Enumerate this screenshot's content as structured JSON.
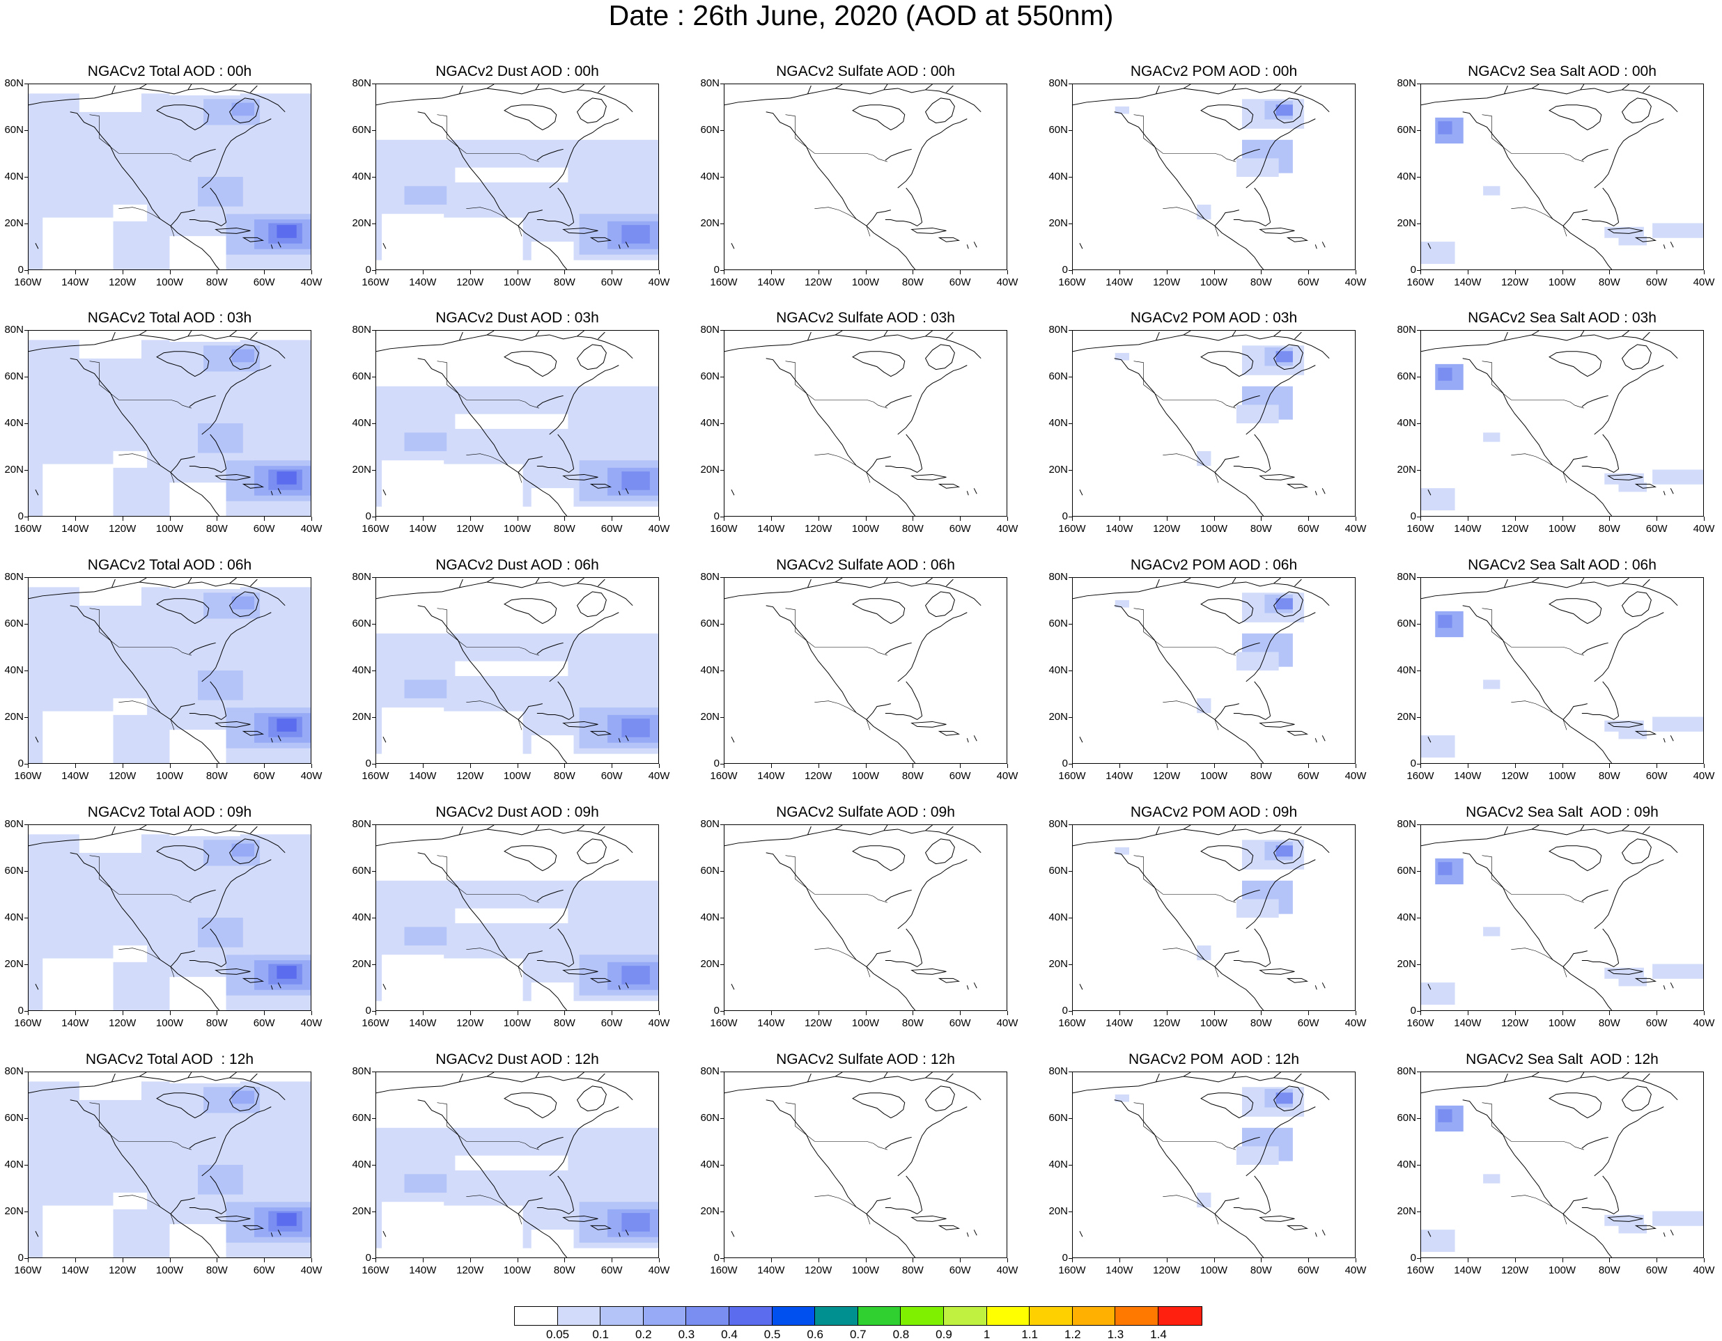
{
  "title": "Date : 26th June, 2020 (AOD at 550nm)",
  "axes": {
    "lat_labels": [
      "80N",
      "60N",
      "40N",
      "20N",
      "0"
    ],
    "lon_labels": [
      "160W",
      "140W",
      "120W",
      "100W",
      "80W",
      "60W",
      "40W"
    ]
  },
  "panels": [
    {
      "title": "NGACv2 Total AOD : 00h",
      "species": "total",
      "hour": "00h"
    },
    {
      "title": "NGACv2 Dust AOD : 00h",
      "species": "dust",
      "hour": "00h"
    },
    {
      "title": "NGACv2 Sulfate AOD : 00h",
      "species": "sulfate",
      "hour": "00h"
    },
    {
      "title": "NGACv2 POM AOD : 00h",
      "species": "pom",
      "hour": "00h"
    },
    {
      "title": "NGACv2 Sea Salt AOD : 00h",
      "species": "seasalt",
      "hour": "00h"
    },
    {
      "title": "NGACv2 Total AOD : 03h",
      "species": "total",
      "hour": "03h"
    },
    {
      "title": "NGACv2 Dust AOD : 03h",
      "species": "dust",
      "hour": "03h"
    },
    {
      "title": "NGACv2 Sulfate AOD : 03h",
      "species": "sulfate",
      "hour": "03h"
    },
    {
      "title": "NGACv2 POM AOD : 03h",
      "species": "pom",
      "hour": "03h"
    },
    {
      "title": "NGACv2 Sea Salt AOD : 03h",
      "species": "seasalt",
      "hour": "03h"
    },
    {
      "title": "NGACv2 Total AOD : 06h",
      "species": "total",
      "hour": "06h"
    },
    {
      "title": "NGACv2 Dust AOD : 06h",
      "species": "dust",
      "hour": "06h"
    },
    {
      "title": "NGACv2 Sulfate AOD : 06h",
      "species": "sulfate",
      "hour": "06h"
    },
    {
      "title": "NGACv2 POM AOD : 06h",
      "species": "pom",
      "hour": "06h"
    },
    {
      "title": "NGACv2 Sea Salt AOD : 06h",
      "species": "seasalt",
      "hour": "06h"
    },
    {
      "title": "NGACv2 Total AOD : 09h",
      "species": "total",
      "hour": "09h"
    },
    {
      "title": "NGACv2 Dust AOD : 09h",
      "species": "dust",
      "hour": "09h"
    },
    {
      "title": "NGACv2 Sulfate AOD : 09h",
      "species": "sulfate",
      "hour": "09h"
    },
    {
      "title": "NGACv2 POM AOD : 09h",
      "species": "pom",
      "hour": "09h"
    },
    {
      "title": "NGACv2 Sea Salt  AOD : 09h",
      "species": "seasalt",
      "hour": "09h"
    },
    {
      "title": "NGACv2 Total AOD  : 12h",
      "species": "total",
      "hour": "12h"
    },
    {
      "title": "NGACv2 Dust AOD : 12h",
      "species": "dust",
      "hour": "12h"
    },
    {
      "title": "NGACv2 Sulfate AOD : 12h",
      "species": "sulfate",
      "hour": "12h"
    },
    {
      "title": "NGACv2 POM  AOD : 12h",
      "species": "pom",
      "hour": "12h"
    },
    {
      "title": "NGACv2 Sea Salt  AOD : 12h",
      "species": "seasalt",
      "hour": "12h"
    }
  ],
  "colorbar": {
    "colors": [
      "#ffffff",
      "#d2dcfa",
      "#b4c4f8",
      "#96aaf6",
      "#7a8ef2",
      "#5c6cee",
      "#0050f0",
      "#009090",
      "#30d030",
      "#7ef000",
      "#c0f040",
      "#ffff00",
      "#ffd000",
      "#ffb000",
      "#ff7800",
      "#ff2010"
    ],
    "labels": [
      "0.05",
      "0.1",
      "0.2",
      "0.3",
      "0.4",
      "0.5",
      "0.6",
      "0.7",
      "0.8",
      "0.9",
      "1",
      "1.1",
      "1.2",
      "1.3",
      "1.4"
    ]
  }
}
